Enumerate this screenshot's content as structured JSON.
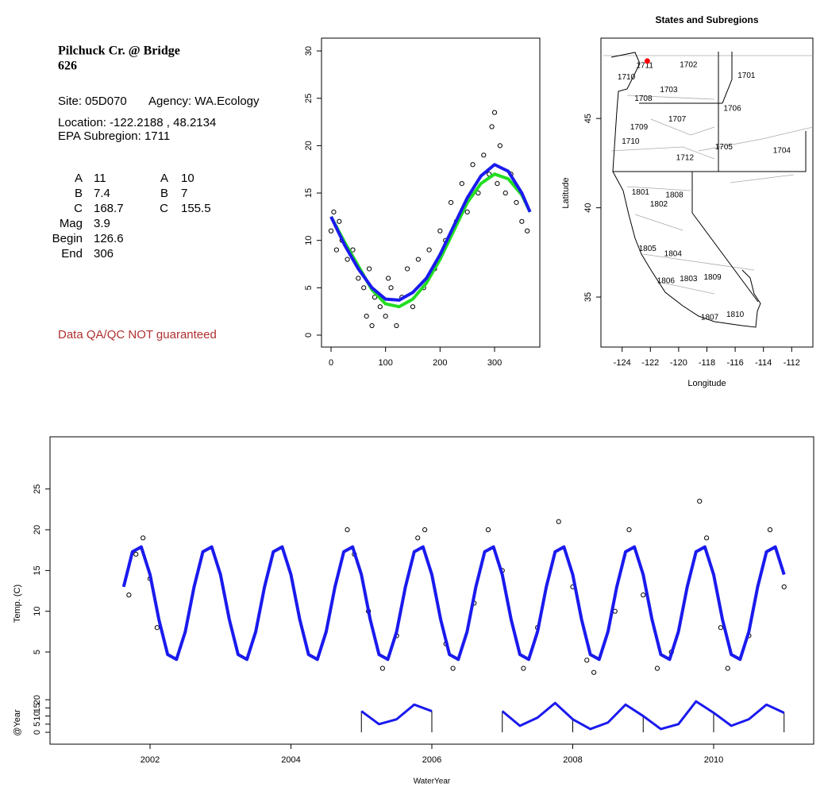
{
  "site": {
    "name": "Pilchuck Cr. @ Bridge",
    "id": "626",
    "site": "Site: 05D070",
    "agency": "Agency: WA.Ecology",
    "location": "Location: -122.2188 , 48.2134",
    "subregion": "EPA Subregion: 1711",
    "params": {
      "labels": [
        "A",
        "B",
        "C",
        "Mag",
        "Begin",
        "End"
      ],
      "fit1": [
        11,
        7.4,
        168.7,
        3.9,
        126.6,
        306
      ],
      "labels2": [
        "A",
        "B",
        "C"
      ],
      "fit2": [
        10,
        7,
        155.5
      ]
    },
    "note": "Data QA/QC NOT guaranteed"
  },
  "chart_data": [
    {
      "type": "scatter",
      "xlim": [
        -17.5,
        383
      ],
      "ylim": [
        -1.26,
        31.35
      ],
      "xticks": [
        0,
        100,
        200,
        300
      ],
      "yticks": [
        0,
        5,
        10,
        15,
        20,
        25,
        30
      ],
      "points": {
        "x": [
          0,
          5,
          10,
          15,
          20,
          30,
          40,
          50,
          60,
          65,
          70,
          75,
          80,
          90,
          100,
          105,
          110,
          120,
          130,
          140,
          150,
          160,
          170,
          180,
          190,
          200,
          210,
          220,
          230,
          240,
          250,
          260,
          270,
          280,
          290,
          295,
          300,
          305,
          310,
          320,
          330,
          340,
          350,
          360
        ],
        "y": [
          11,
          13,
          9,
          12,
          10,
          8,
          9,
          6,
          5,
          2,
          7,
          1,
          4,
          3,
          2,
          6,
          5,
          1,
          4,
          7,
          3,
          8,
          5,
          9,
          7,
          11,
          10,
          14,
          12,
          16,
          13,
          18,
          15,
          19,
          17,
          22,
          23.5,
          16,
          20,
          15,
          17,
          14,
          12,
          11
        ],
        "color": "#000000"
      },
      "x": [
        0,
        25,
        50,
        75,
        100,
        125,
        150,
        175,
        200,
        225,
        250,
        275,
        300,
        325,
        350,
        365
      ],
      "series": [
        {
          "color": "#22dd22",
          "values": [
            12.5,
            9.8,
            7.3,
            4.8,
            3.3,
            3,
            3.8,
            5.5,
            8,
            11,
            14,
            16,
            17,
            16.5,
            14.8,
            13
          ]
        },
        {
          "color": "#1a1aee",
          "values": [
            12.5,
            9.5,
            7,
            5,
            3.8,
            3.7,
            4.5,
            6,
            8.5,
            11.5,
            14.5,
            16.8,
            18,
            17.3,
            15,
            13
          ]
        }
      ]
    },
    {
      "type": "map",
      "title": "States and Subregions",
      "x_label": "Longitude",
      "y_label": "Latitude",
      "xlim": [
        -125.5,
        -110.5
      ],
      "ylim": [
        32.2,
        49.5
      ],
      "xticks": [
        -124,
        -122,
        -120,
        -118,
        -116,
        -114,
        -112
      ],
      "yticks": [
        35,
        40,
        45
      ],
      "site_marker": {
        "lon": -122.2188,
        "lat": 48.2134,
        "color": "#ff0000"
      },
      "regions": [
        {
          "label": "1711",
          "lon": -122.4,
          "lat": 47.95
        },
        {
          "label": "1702",
          "lon": -119.3,
          "lat": 48.0
        },
        {
          "label": "1701",
          "lon": -115.2,
          "lat": 47.4
        },
        {
          "label": "1710",
          "lon": -123.7,
          "lat": 47.3
        },
        {
          "label": "1703",
          "lon": -120.7,
          "lat": 46.6
        },
        {
          "label": "1708",
          "lon": -122.5,
          "lat": 46.1
        },
        {
          "label": "1706",
          "lon": -116.2,
          "lat": 45.55
        },
        {
          "label": "1707",
          "lon": -120.1,
          "lat": 44.95
        },
        {
          "label": "1709",
          "lon": -122.8,
          "lat": 44.5
        },
        {
          "label": "1710",
          "lon": -123.4,
          "lat": 43.7
        },
        {
          "label": "1705",
          "lon": -116.8,
          "lat": 43.4
        },
        {
          "label": "1704",
          "lon": -112.7,
          "lat": 43.2
        },
        {
          "label": "1712",
          "lon": -119.55,
          "lat": 42.8
        },
        {
          "label": "1801",
          "lon": -122.7,
          "lat": 40.85
        },
        {
          "label": "1808",
          "lon": -120.3,
          "lat": 40.7
        },
        {
          "label": "1802",
          "lon": -121.4,
          "lat": 40.2
        },
        {
          "label": "1805",
          "lon": -122.2,
          "lat": 37.7
        },
        {
          "label": "1804",
          "lon": -120.4,
          "lat": 37.4
        },
        {
          "label": "1809",
          "lon": -117.6,
          "lat": 36.1
        },
        {
          "label": "1806",
          "lon": -120.9,
          "lat": 35.9
        },
        {
          "label": "1803",
          "lon": -119.3,
          "lat": 36.0
        },
        {
          "label": "1807",
          "lon": -117.8,
          "lat": 33.85
        },
        {
          "label": "1810",
          "lon": -116.0,
          "lat": 34.0
        }
      ]
    },
    {
      "type": "timeseries",
      "x_label": "WaterYear",
      "y_label": "Temp. (C)",
      "xlim": [
        2000.58,
        2011.42
      ],
      "ylim": [
        -6.3,
        31.4
      ],
      "xticks": [
        2002,
        2004,
        2006,
        2008,
        2010
      ],
      "yticks": [
        5,
        10,
        15,
        20,
        25
      ],
      "x": [
        2001.625,
        2001.75,
        2001.875,
        2002,
        2002.125,
        2002.25,
        2002.375,
        2002.5,
        2002.625,
        2002.75,
        2002.875,
        2003,
        2003.125,
        2003.25,
        2003.375,
        2003.5,
        2003.625,
        2003.75,
        2003.875,
        2004,
        2004.125,
        2004.25,
        2004.375,
        2004.5,
        2004.625,
        2004.75,
        2004.875,
        2005,
        2005.125,
        2005.25,
        2005.375,
        2005.5,
        2005.625,
        2005.75,
        2005.875,
        2006,
        2006.125,
        2006.25,
        2006.375,
        2006.5,
        2006.625,
        2006.75,
        2006.875,
        2007,
        2007.125,
        2007.25,
        2007.375,
        2007.5,
        2007.625,
        2007.75,
        2007.875,
        2008,
        2008.125,
        2008.25,
        2008.375,
        2008.5,
        2008.625,
        2008.75,
        2008.875,
        2009,
        2009.125,
        2009.25,
        2009.375,
        2009.5,
        2009.625,
        2009.75,
        2009.875,
        2010,
        2010.125,
        2010.25,
        2010.375,
        2010.5,
        2010.625,
        2010.75,
        2010.875,
        2011
      ],
      "series": [
        {
          "color": "#1a1aee",
          "values": [
            13.0,
            17.3,
            17.9,
            14.5,
            9.0,
            4.7,
            4.1,
            7.5,
            13.0,
            17.3,
            17.9,
            14.5,
            9.0,
            4.7,
            4.1,
            7.5,
            13.0,
            17.3,
            17.9,
            14.5,
            9.0,
            4.7,
            4.1,
            7.5,
            13.0,
            17.3,
            17.9,
            14.5,
            9.0,
            4.7,
            4.1,
            7.5,
            13.0,
            17.3,
            17.9,
            14.5,
            9.0,
            4.7,
            4.1,
            7.5,
            13.0,
            17.3,
            17.9,
            14.5,
            9.0,
            4.7,
            4.1,
            7.5,
            13.0,
            17.3,
            17.9,
            14.5,
            9.0,
            4.7,
            4.1,
            7.5,
            13.0,
            17.3,
            17.9,
            14.5,
            9.0,
            4.7,
            4.1,
            7.5,
            13.0,
            17.3,
            17.9,
            14.5,
            9.0,
            4.7,
            4.1,
            7.5,
            13.0,
            17.3,
            17.9,
            14.5
          ]
        }
      ],
      "points": {
        "x": [
          2001.7,
          2001.8,
          2001.9,
          2002.0,
          2002.1,
          2004.8,
          2004.9,
          2005.1,
          2005.3,
          2005.5,
          2005.8,
          2005.9,
          2006.2,
          2006.3,
          2006.6,
          2006.8,
          2007.0,
          2007.3,
          2007.5,
          2007.8,
          2008.0,
          2008.2,
          2008.3,
          2008.6,
          2008.8,
          2009.0,
          2009.2,
          2009.4,
          2009.8,
          2009.9,
          2010.1,
          2010.2,
          2010.5,
          2010.8,
          2011.0
        ],
        "y": [
          12,
          17,
          19,
          14,
          8,
          20,
          17,
          10,
          3,
          7,
          19,
          20,
          6,
          3,
          11,
          20,
          15,
          3,
          8,
          21,
          13,
          4,
          2.5,
          10,
          20,
          12,
          3,
          5,
          23.5,
          19,
          8,
          3,
          7,
          20,
          13
        ],
        "color": "#000000"
      },
      "sub_panel": {
        "y_label": "@Year",
        "ylim": [
          -7.3,
          25.4
        ],
        "yticks": [
          0,
          5,
          10,
          15,
          20
        ],
        "x": [
          2005,
          2005.25,
          2005.5,
          2005.75,
          2006,
          2006.25,
          2006.5,
          2006.75,
          2007,
          2007.25,
          2007.5,
          2007.75,
          2008,
          2008.25,
          2008.5,
          2008.75,
          2009,
          2009.25,
          2009.5,
          2009.75,
          2010,
          2010.25,
          2010.5,
          2010.75,
          2011
        ],
        "values": [
          13,
          5,
          8,
          17,
          13,
          null,
          null,
          null,
          13,
          4,
          9,
          18,
          8,
          2,
          6,
          17,
          10,
          2,
          5,
          19,
          12,
          4,
          8,
          17,
          12
        ],
        "color": "#1a1aee",
        "year_marks": [
          2005,
          2006,
          2007,
          2008,
          2009,
          2010,
          2011
        ]
      }
    }
  ]
}
